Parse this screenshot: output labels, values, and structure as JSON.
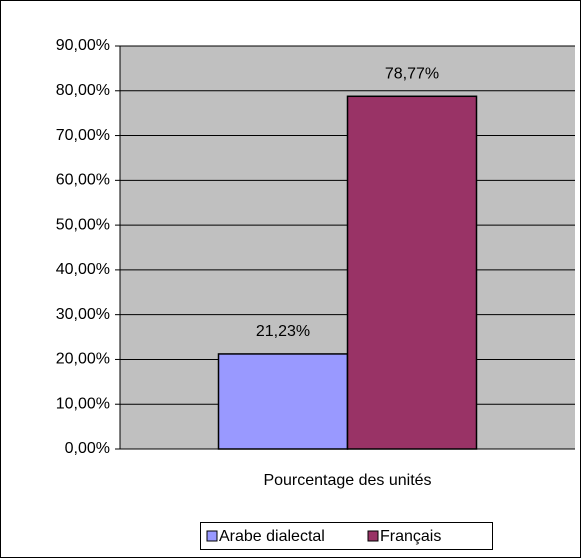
{
  "chart_data": {
    "type": "bar",
    "categories": [
      "Pourcentage des unités"
    ],
    "series": [
      {
        "name": "Arabe dialectal",
        "color": "#9999ff",
        "values": [
          21.23
        ],
        "value_labels": [
          "21,23%"
        ]
      },
      {
        "name": "Français",
        "color": "#993366",
        "values": [
          78.77
        ],
        "value_labels": [
          "78,77%"
        ]
      }
    ],
    "ylim": [
      0,
      90
    ],
    "yticks": [
      {
        "value": 0,
        "label": "0,00%"
      },
      {
        "value": 10,
        "label": "10,00%"
      },
      {
        "value": 20,
        "label": "20,00%"
      },
      {
        "value": 30,
        "label": "30,00%"
      },
      {
        "value": 40,
        "label": "40,00%"
      },
      {
        "value": 50,
        "label": "50,00%"
      },
      {
        "value": 60,
        "label": "60,00%"
      },
      {
        "value": 70,
        "label": "70,00%"
      },
      {
        "value": 80,
        "label": "80,00%"
      },
      {
        "value": 90,
        "label": "90,00%"
      }
    ],
    "grid": true,
    "plot_background": "#c0c0c0",
    "legend": "bottom"
  }
}
